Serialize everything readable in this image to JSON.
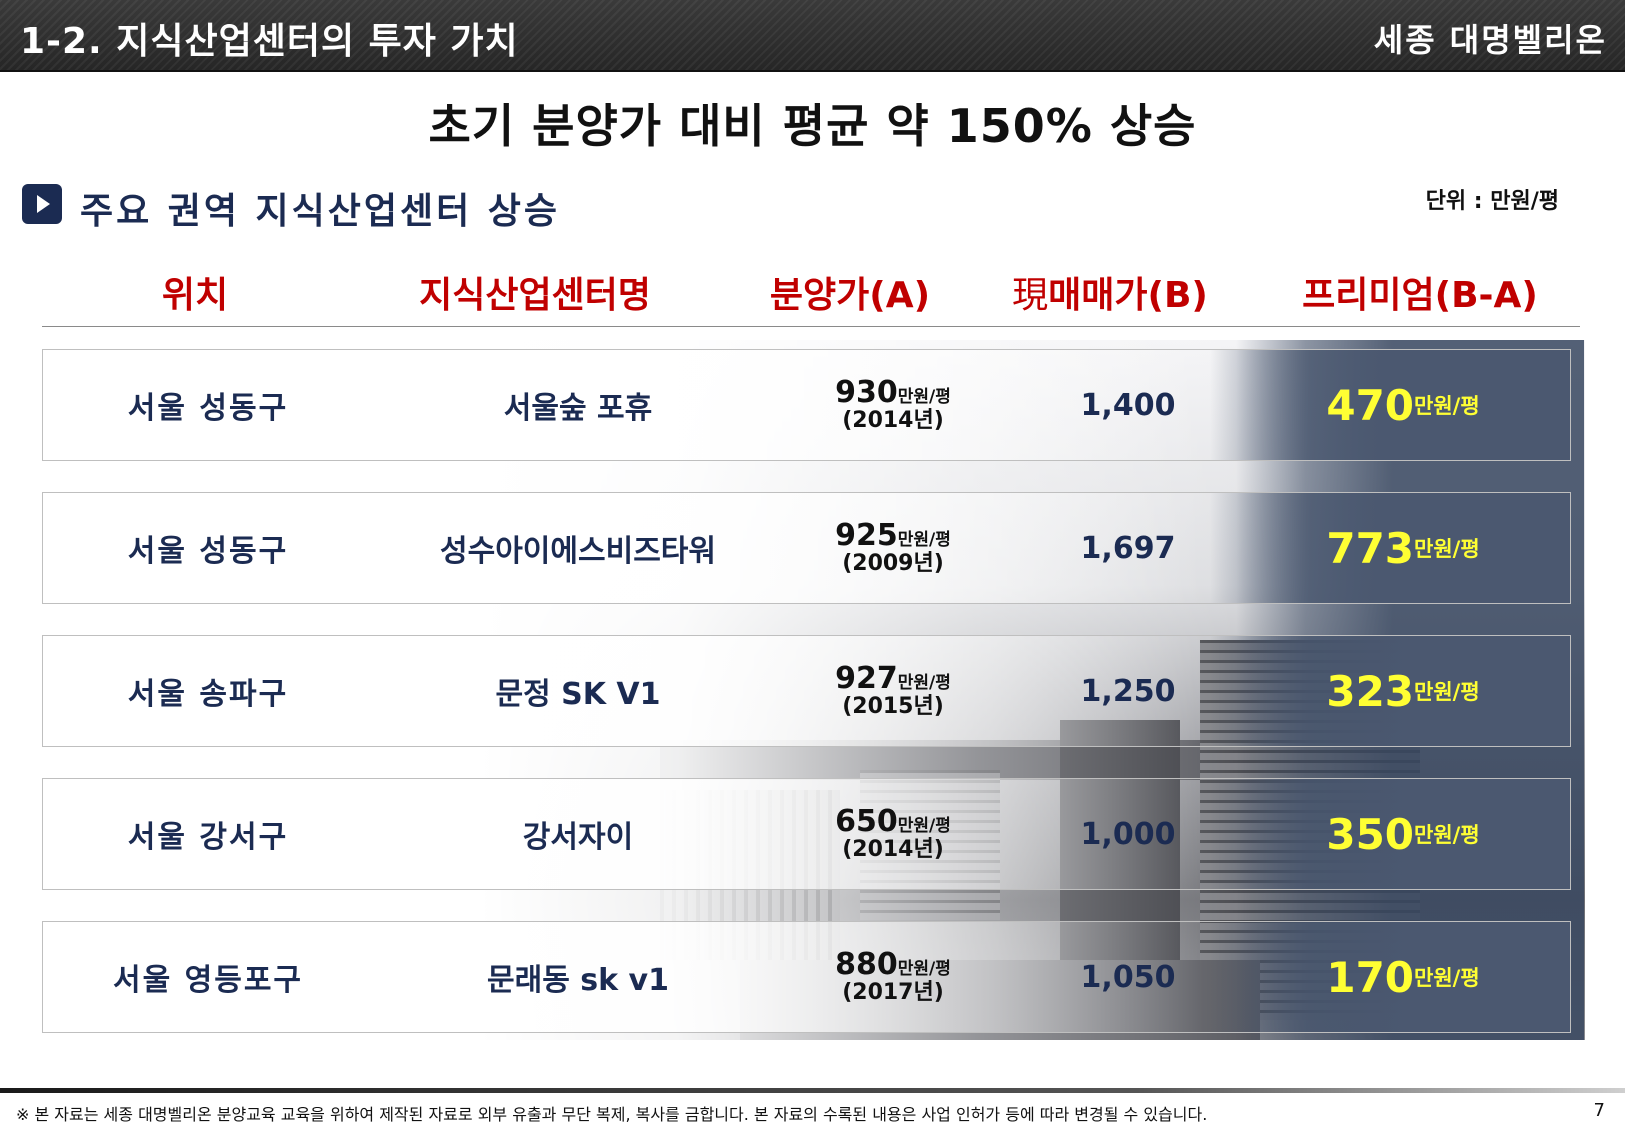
{
  "header": {
    "section_title": "1-2. 지식산업센터의 투자 가치",
    "brand": "세종 대명벨리온"
  },
  "headline": "초기 분양가 대비 평균 약 150% 상승",
  "subhead": {
    "icon": "play-icon",
    "text": "주요 권역 지식산업센터 상승",
    "unit_note": "단위 : 만원/평"
  },
  "columns": {
    "location": "위치",
    "name": "지식산업센터명",
    "sale_price": "분양가(A)",
    "current_prefix": "現",
    "current_price": "매매가(B)",
    "premium": "프리미엄(B-A)"
  },
  "rows": [
    {
      "location": "서울 성동구",
      "name": "서울숲 포휴",
      "sale_price": "930",
      "price_unit": "만원/평",
      "year": "(2014년)",
      "current": "1,400",
      "premium": "470",
      "premium_unit": "만원/평"
    },
    {
      "location": "서울 성동구",
      "name": "성수아이에스비즈타워",
      "sale_price": "925",
      "price_unit": "만원/평",
      "year": "(2009년)",
      "current": "1,697",
      "premium": "773",
      "premium_unit": "만원/평"
    },
    {
      "location": "서울 송파구",
      "name": "문정 SK V1",
      "sale_price": "927",
      "price_unit": "만원/평",
      "year": "(2015년)",
      "current": "1,250",
      "premium": "323",
      "premium_unit": "만원/평"
    },
    {
      "location": "서울 강서구",
      "name": "강서자이",
      "sale_price": "650",
      "price_unit": "만원/평",
      "year": "(2014년)",
      "current": "1,000",
      "premium": "350",
      "premium_unit": "만원/평"
    },
    {
      "location": "서울 영등포구",
      "name": "문래동 sk v1",
      "sale_price": "880",
      "price_unit": "만원/평",
      "year": "(2017년)",
      "current": "1,050",
      "premium": "170",
      "premium_unit": "만원/평"
    }
  ],
  "footer": {
    "disclaimer": "※ 본 자료는 세종 대명벨리온 분양교육 교육을 위하여 제작된 자료로 외부 유출과 무단 복제, 복사를 금합니다. 본 자료의 수록된 내용은 사업 인허가 등에 따라 변경될 수 있습니다.",
    "page_number": "7"
  },
  "colors": {
    "accent_navy": "#1b2b52",
    "header_red": "#c00000",
    "premium_yellow": "#ffff33",
    "premium_panel": "#4b5870"
  }
}
